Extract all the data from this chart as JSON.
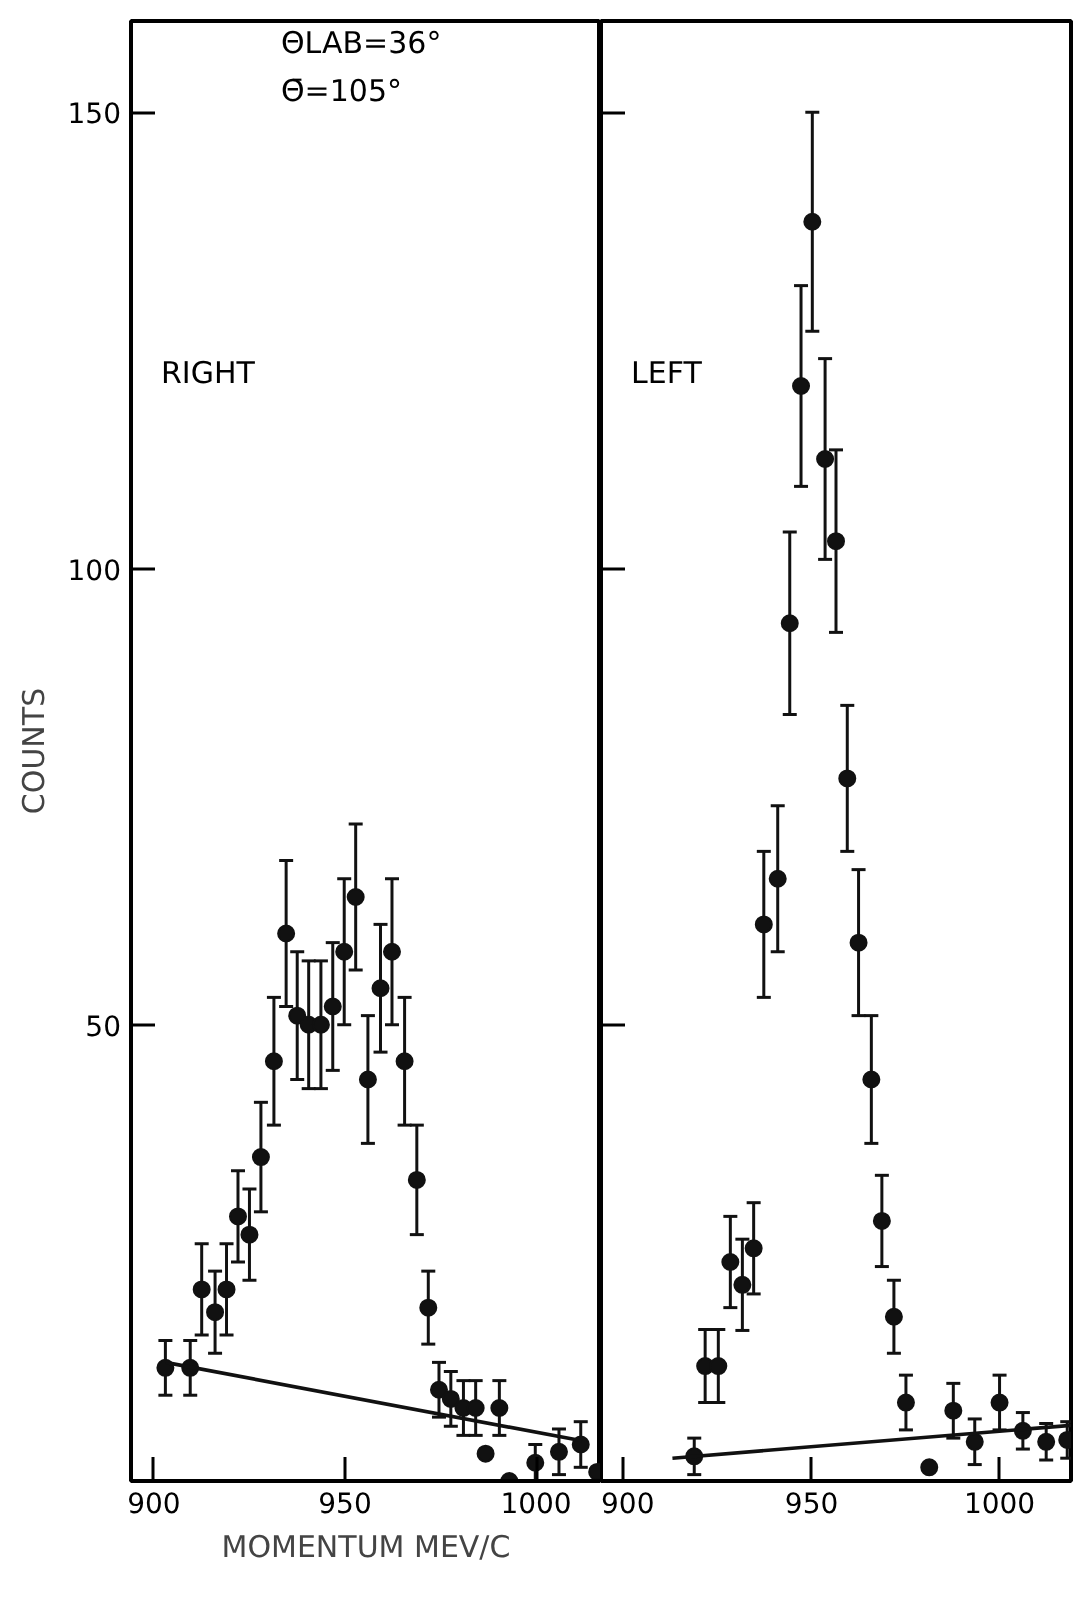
{
  "chart_data": [
    {
      "type": "scatter",
      "xlabel": "MOMENTUM MEV/C",
      "ylabel": "COUNTS",
      "annotations": [
        "ΘLAB=36°",
        "Θ̄=105°",
        "RIGHT"
      ],
      "xlim": [
        894,
        1017
      ],
      "ylim": [
        0,
        160
      ],
      "xticks": [
        900,
        950,
        1000
      ],
      "yticks": [
        50,
        100,
        150
      ],
      "grid": false,
      "marker": "circle",
      "series": [
        {
          "color": "#111111",
          "x": [
            903,
            909.5,
            912.5,
            916,
            919,
            922,
            925,
            928,
            931.4,
            934.6,
            937.5,
            940.5,
            943.7,
            946.8,
            949.8,
            952.8,
            956,
            959.3,
            962.3,
            965.6,
            968.8,
            971.8,
            974.6,
            977.7,
            981,
            984.2,
            986.8,
            990.4,
            993,
            999.8,
            1006,
            1011.7,
            1016
          ],
          "values": [
            12.4,
            12.4,
            21,
            18.5,
            21,
            29,
            27,
            35.5,
            46,
            60,
            51,
            50,
            50,
            52,
            58,
            64,
            44,
            54,
            58,
            46,
            33,
            19,
            10,
            9,
            8,
            8,
            3,
            8,
            0,
            2,
            3.2,
            4,
            1
          ],
          "errors": [
            3,
            3,
            5,
            4.5,
            5,
            5,
            5,
            6,
            7,
            8,
            7,
            7,
            7,
            7,
            8,
            8,
            7,
            7,
            8,
            7,
            6,
            4,
            3,
            3,
            3,
            3,
            null,
            3,
            null,
            2,
            2.5,
            2.5,
            null
          ]
        },
        {
          "type": "line",
          "color": "#111111",
          "marker": "none",
          "line_style": "solid",
          "x": [
            903,
            1012
          ],
          "values": [
            13,
            4.4
          ]
        }
      ]
    },
    {
      "type": "scatter",
      "annotations": [
        "LEFT"
      ],
      "xlim": [
        894,
        1019
      ],
      "ylim": [
        0,
        160
      ],
      "xticks": [
        900,
        950,
        1000
      ],
      "yticks": [
        50,
        100,
        150
      ],
      "tick_labels": "x",
      "grid": false,
      "marker": "circle",
      "series": [
        {
          "color": "#111111",
          "x": [
            918.8,
            921.7,
            925.2,
            928.4,
            931.6,
            934.6,
            937.3,
            941,
            944.2,
            947.2,
            950.2,
            953.6,
            956.5,
            959.5,
            962.5,
            965.9,
            968.7,
            971.9,
            975.1,
            981.3,
            987.7,
            993.4,
            1000,
            1006.2,
            1012.4,
            1018
          ],
          "values": [
            2.7,
            12.6,
            12.6,
            24,
            21.5,
            25.5,
            61,
            66,
            94,
            120,
            138,
            112,
            103,
            77,
            59,
            44,
            28.5,
            18,
            8.6,
            1.5,
            7.7,
            4.3,
            8.6,
            5.5,
            4.3,
            4.5
          ],
          "errors": [
            2,
            4,
            4,
            5,
            5,
            5,
            8,
            8,
            10,
            11,
            12,
            11,
            10,
            8,
            8,
            7,
            5,
            4,
            3,
            null,
            3,
            2.5,
            3,
            2,
            2,
            2
          ]
        },
        {
          "type": "line",
          "color": "#111111",
          "marker": "none",
          "line_style": "solid",
          "x": [
            913,
            1019
          ],
          "values": [
            2.5,
            6.1
          ]
        }
      ]
    }
  ]
}
